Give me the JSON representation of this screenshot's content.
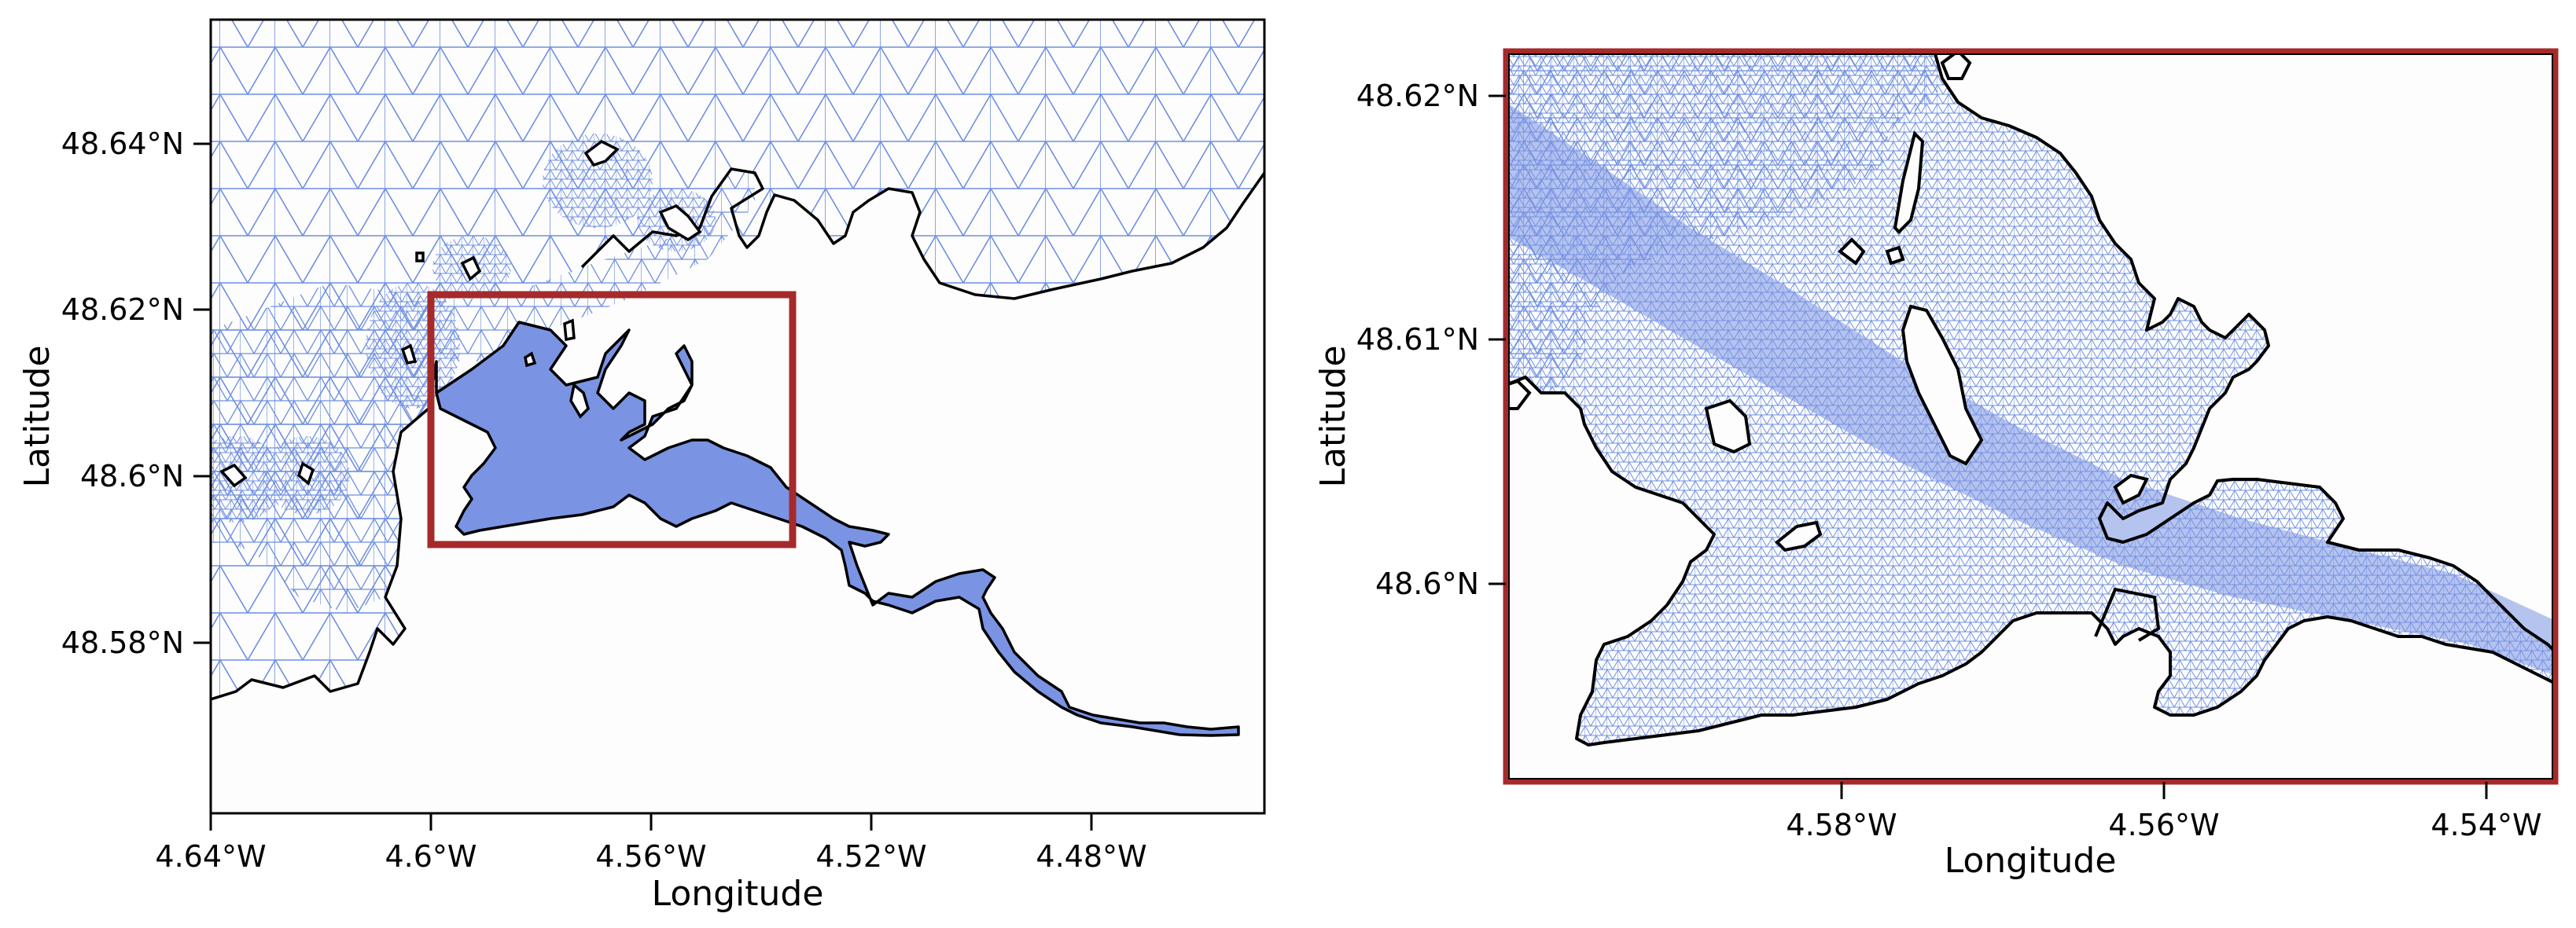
{
  "colors": {
    "mesh": "#6f8fe0",
    "water_dense": "#7a93e3",
    "coastline": "#000000",
    "inset_box": "#a52a2a",
    "background": "#fdfdfd"
  },
  "left_map": {
    "xlabel": "Longitude",
    "ylabel": "Latitude",
    "xticks": [
      "4.64°W",
      "4.6°W",
      "4.56°W",
      "4.52°W",
      "4.48°W"
    ],
    "yticks": [
      "48.64°N",
      "48.62°N",
      "48.6°N",
      "48.58°N"
    ],
    "lon_range": [
      -4.64,
      -4.445
    ],
    "lat_range": [
      48.56,
      48.655
    ]
  },
  "right_map": {
    "xlabel": "Longitude",
    "ylabel": "Latitude",
    "xticks": [
      "4.58°W",
      "4.56°W",
      "4.54°W"
    ],
    "yticks": [
      "48.62°N",
      "48.61°N",
      "48.6°N"
    ],
    "lon_range": [
      -4.6,
      -4.535
    ],
    "lat_range": [
      48.592,
      48.622
    ]
  }
}
